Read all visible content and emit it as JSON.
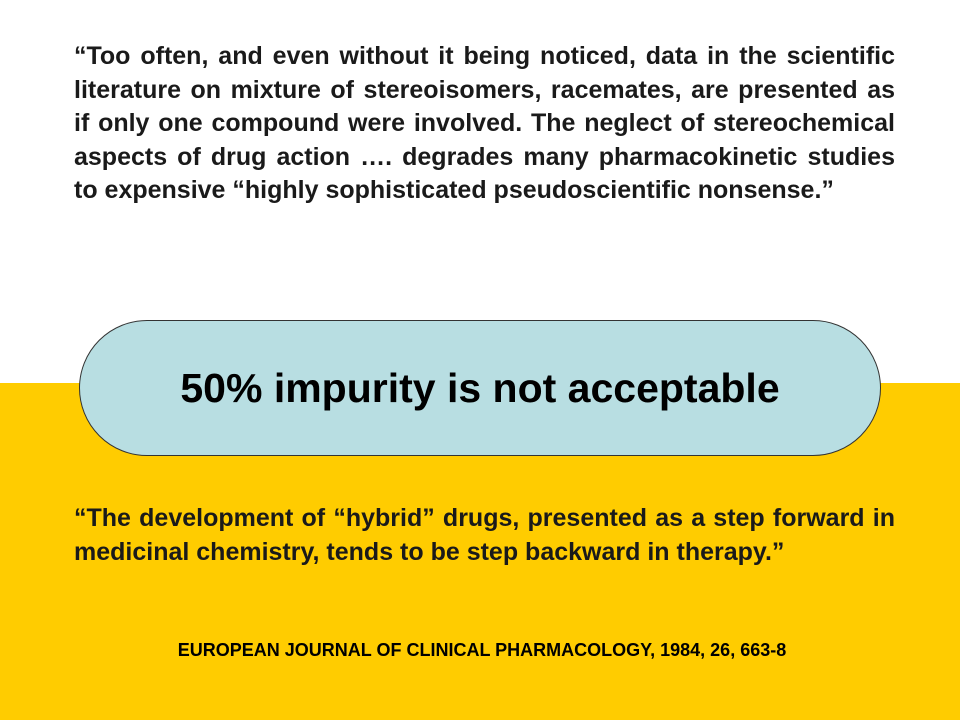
{
  "colors": {
    "panel_background": "#FFCC00",
    "pill_background": "#B8DEE2",
    "text": "#1a1a1a"
  },
  "quotes": {
    "top": "“Too often, and even without it being noticed, data in the scientific literature on mixture of stereoisomers, racemates, are presented as if only one compound were involved. The neglect of stereochemical aspects of drug action …. degrades many pharmacokinetic studies to expensive “highly sophisticated pseudoscientific nonsense.”",
    "bottom": "“The development of “hybrid” drugs, presented as a step forward in medicinal chemistry, tends to be step backward in therapy.”"
  },
  "callout": {
    "text": "50% impurity is not acceptable"
  },
  "citation": {
    "text": "EUROPEAN JOURNAL OF CLINICAL PHARMACOLOGY, 1984, 26, 663-8"
  }
}
